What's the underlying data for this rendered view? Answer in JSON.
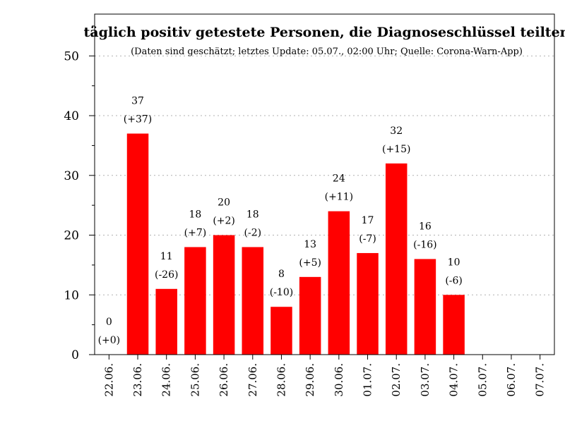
{
  "chart_data": {
    "type": "bar",
    "title": "täglich positiv getestete Personen, die Diagnoseschlüssel teilten",
    "subtitle": "(Daten sind geschätzt; letztes Update: 05.07., 02:00 Uhr; Quelle: Corona-Warn-App)",
    "xlabel": "",
    "ylabel": "",
    "ylim": [
      0,
      57
    ],
    "yticks": [
      0,
      10,
      20,
      30,
      40,
      50
    ],
    "grid": true,
    "categories": [
      "22.06.",
      "23.06.",
      "24.06.",
      "25.06.",
      "26.06.",
      "27.06.",
      "28.06.",
      "29.06.",
      "30.06.",
      "01.07.",
      "02.07.",
      "03.07.",
      "04.07.",
      "05.07.",
      "06.07.",
      "07.07."
    ],
    "values": [
      0,
      37,
      11,
      18,
      20,
      18,
      8,
      13,
      24,
      17,
      32,
      16,
      10,
      null,
      null,
      null
    ],
    "changes": [
      "(+0)",
      "(+37)",
      "(-26)",
      "(+7)",
      "(+2)",
      "(-2)",
      "(-10)",
      "(+5)",
      "(+11)",
      "(-7)",
      "(+15)",
      "(-16)",
      "(-6)",
      "",
      "",
      ""
    ],
    "bar_color": "#ff0000"
  }
}
